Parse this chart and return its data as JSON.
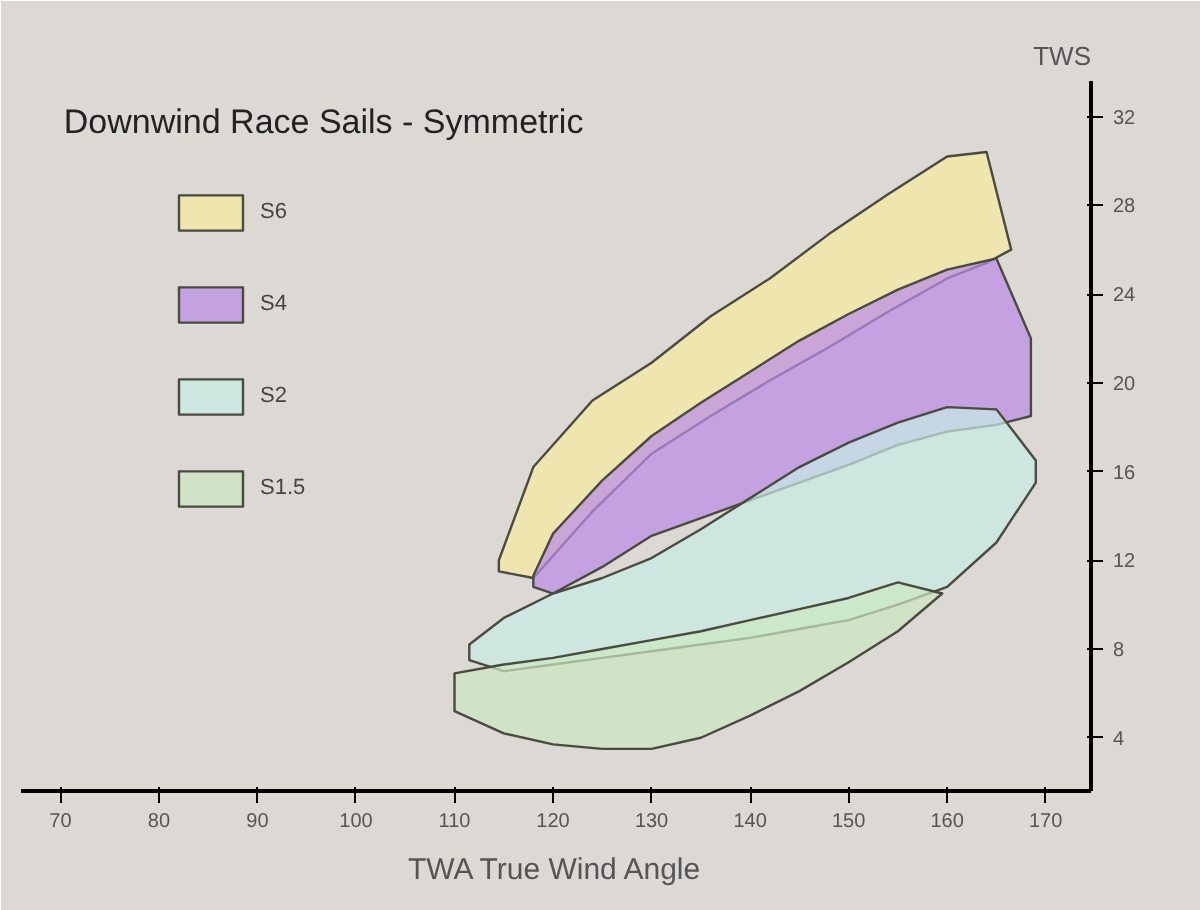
{
  "chart_data": {
    "type": "area",
    "title": "Downwind Race Sails - Symmetric",
    "xlabel": "TWA True Wind Angle",
    "ylabel": "TWS",
    "xlim": [
      66,
      174.6
    ],
    "ylim": [
      1.6,
      33.6
    ],
    "xticks": [
      70,
      80,
      90,
      100,
      110,
      120,
      130,
      140,
      150,
      160,
      170
    ],
    "yticks": [
      4,
      8,
      12,
      16,
      20,
      24,
      28,
      32
    ],
    "grid": false,
    "legend": "left",
    "series": [
      {
        "name": "S6",
        "color": "#f5eba0",
        "x": [
          114.5,
          118,
          124,
          130,
          136,
          142,
          148,
          154,
          160,
          164,
          166.5,
          164,
          160,
          154,
          148,
          142,
          136,
          130,
          124,
          118,
          114.5
        ],
        "values": [
          12.0,
          16.2,
          19.2,
          20.9,
          23.0,
          24.7,
          26.7,
          28.5,
          30.2,
          30.4,
          26.0,
          25.4,
          24.7,
          23.2,
          21.6,
          20.1,
          18.5,
          16.8,
          14.2,
          11.2,
          11.5
        ]
      },
      {
        "name": "S4",
        "color": "#b98be8",
        "x": [
          118,
          120,
          125,
          130,
          135,
          140,
          145,
          150,
          155,
          160,
          165,
          168.5,
          168.5,
          165,
          160,
          155,
          150,
          145,
          140,
          135,
          130,
          125,
          120,
          118
        ],
        "values": [
          11.3,
          13.2,
          15.6,
          17.6,
          19.1,
          20.5,
          21.9,
          23.1,
          24.2,
          25.1,
          25.6,
          22.0,
          18.5,
          18.1,
          17.8,
          17.2,
          16.3,
          15.5,
          14.7,
          13.9,
          13.1,
          11.7,
          10.5,
          10.8
        ]
      },
      {
        "name": "S2",
        "color": "#c8ece6",
        "x": [
          111.5,
          115,
          120,
          125,
          130,
          135,
          140,
          145,
          150,
          155,
          160,
          165,
          169,
          169,
          165,
          160,
          155,
          150,
          145,
          140,
          135,
          130,
          125,
          120,
          115,
          111.5
        ],
        "values": [
          8.2,
          9.4,
          10.5,
          11.2,
          12.1,
          13.4,
          14.8,
          16.2,
          17.3,
          18.2,
          18.9,
          18.8,
          16.5,
          15.5,
          12.8,
          10.8,
          10.0,
          9.3,
          8.9,
          8.5,
          8.2,
          7.9,
          7.6,
          7.3,
          7.0,
          7.5
        ]
      },
      {
        "name": "S1.5",
        "color": "#cce8c0",
        "x": [
          110,
          115,
          120,
          125,
          130,
          135,
          140,
          145,
          150,
          155,
          159.5,
          155,
          150,
          145,
          140,
          135,
          130,
          125,
          120,
          115,
          110
        ],
        "values": [
          6.9,
          7.3,
          7.6,
          8.0,
          8.4,
          8.8,
          9.3,
          9.8,
          10.3,
          11.0,
          10.5,
          8.8,
          7.4,
          6.1,
          5.0,
          4.0,
          3.5,
          3.5,
          3.7,
          4.2,
          5.2
        ]
      }
    ]
  }
}
